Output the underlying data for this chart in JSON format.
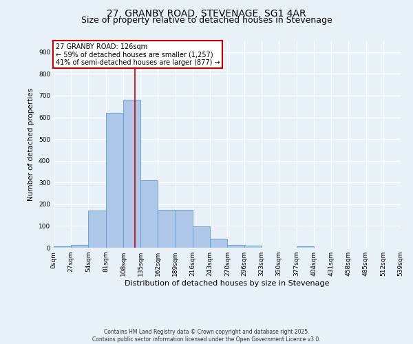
{
  "title_line1": "27, GRANBY ROAD, STEVENAGE, SG1 4AR",
  "title_line2": "Size of property relative to detached houses in Stevenage",
  "xlabel": "Distribution of detached houses by size in Stevenage",
  "ylabel": "Number of detached properties",
  "bar_values": [
    7,
    12,
    170,
    620,
    680,
    310,
    175,
    175,
    97,
    40,
    14,
    11,
    0,
    0,
    7,
    0,
    0,
    0,
    0,
    0
  ],
  "bin_edges": [
    0,
    27,
    54,
    81,
    108,
    135,
    162,
    189,
    216,
    243,
    270,
    296,
    323,
    350,
    377,
    404,
    431,
    458,
    485,
    512,
    539
  ],
  "tick_labels": [
    "0sqm",
    "27sqm",
    "54sqm",
    "81sqm",
    "108sqm",
    "135sqm",
    "162sqm",
    "189sqm",
    "216sqm",
    "243sqm",
    "270sqm",
    "296sqm",
    "323sqm",
    "350sqm",
    "377sqm",
    "404sqm",
    "431sqm",
    "458sqm",
    "485sqm",
    "512sqm",
    "539sqm"
  ],
  "bar_color": "#aec6e8",
  "bar_edge_color": "#5b9bd5",
  "vline_x": 126,
  "vline_color": "#cc0000",
  "ylim": [
    0,
    950
  ],
  "yticks": [
    0,
    100,
    200,
    300,
    400,
    500,
    600,
    700,
    800,
    900
  ],
  "annotation_text": "27 GRANBY ROAD: 126sqm\n← 59% of detached houses are smaller (1,257)\n41% of semi-detached houses are larger (877) →",
  "annotation_box_color": "#ffffff",
  "annotation_box_edge": "#cc0000",
  "footer_line1": "Contains HM Land Registry data © Crown copyright and database right 2025.",
  "footer_line2": "Contains public sector information licensed under the Open Government Licence v3.0.",
  "background_color": "#e8f0f8",
  "grid_color": "#ffffff",
  "title_fontsize": 10,
  "subtitle_fontsize": 9,
  "tick_fontsize": 6.5,
  "ylabel_fontsize": 7.5,
  "xlabel_fontsize": 8,
  "footer_fontsize": 5.5
}
